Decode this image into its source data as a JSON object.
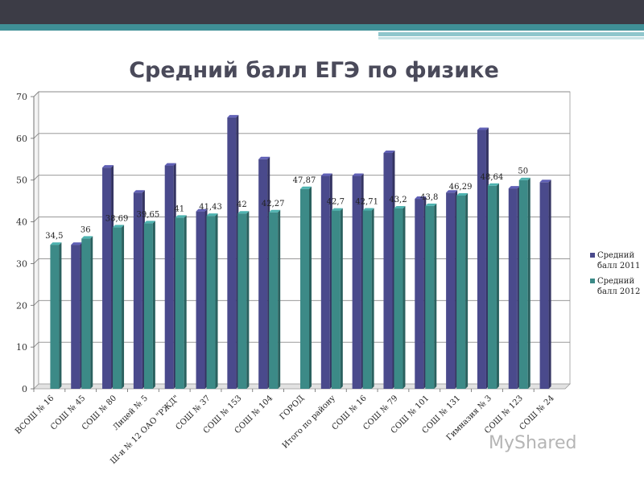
{
  "slide": {
    "watermark_text": "MyShared"
  },
  "chart_data": {
    "type": "bar",
    "title": "Средний балл ЕГЭ по физике",
    "xlabel": "",
    "ylabel": "",
    "ylim": [
      0,
      70
    ],
    "yticks": [
      0,
      10,
      20,
      30,
      40,
      50,
      60,
      70
    ],
    "grid": true,
    "legend_position": "right",
    "categories": [
      "ВСОШ № 16",
      "СОШ № 45",
      "СОШ № 80",
      "Лицей № 5",
      "Ш-и № 12 ОАО \"РЖД\"",
      "СОШ № 37",
      "СОШ № 153",
      "СОШ № 104",
      "ГОРОД",
      "Итого по району",
      "СОШ № 16",
      "СОШ № 79",
      "СОШ № 101",
      "СОШ № 131",
      "Гимназия № 3",
      "СОШ № 123",
      "СОШ № 24"
    ],
    "series": [
      {
        "name": "Средний балл 2011",
        "color": "#4a4a8c",
        "values": [
          null,
          34.5,
          53,
          47,
          53.5,
          42.5,
          65,
          55,
          null,
          51,
          51,
          56.5,
          45.5,
          47,
          62,
          48,
          49.5
        ]
      },
      {
        "name": "Средний балл 2012",
        "color": "#3c8a87",
        "values": [
          34.5,
          36,
          38.69,
          39.65,
          41,
          41.43,
          42,
          42.27,
          47.87,
          42.7,
          42.71,
          43.2,
          43.8,
          46.29,
          48.64,
          50,
          null
        ]
      }
    ],
    "data_labels": [
      "34,5",
      "36",
      "38,69",
      "39,65",
      "41",
      "41,43",
      "42",
      "42,27",
      "47,87",
      "42,7",
      "42,71",
      "43,2",
      "43,8",
      "46,29",
      "48,64",
      "50",
      null
    ]
  }
}
